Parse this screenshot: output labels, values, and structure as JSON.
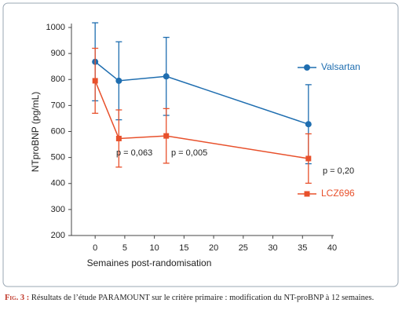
{
  "chart_data": {
    "type": "line",
    "x_label": "Semaines post-randomisation",
    "y_label": "NTproBNP (pg/mL)",
    "x": [
      0,
      4,
      12,
      36
    ],
    "xlim": [
      -4,
      40
    ],
    "xticks": [
      0,
      5,
      10,
      15,
      20,
      25,
      30,
      35,
      40
    ],
    "ylim": [
      200,
      1000
    ],
    "yticks": [
      200,
      300,
      400,
      500,
      600,
      700,
      800,
      900,
      1000
    ],
    "series": [
      {
        "name": "Valsartan",
        "color": "#1f6eb0",
        "marker": "circle",
        "values": [
          868,
          795,
          812,
          628
        ],
        "errors": [
          150,
          150,
          150,
          152
        ]
      },
      {
        "name": "LCZ696",
        "color": "#e8502b",
        "marker": "square",
        "values": [
          795,
          573,
          583,
          496
        ],
        "errors": [
          125,
          110,
          105,
          95
        ]
      }
    ],
    "annotations": [
      "p = 0,063",
      "p = 0,005",
      "p = 0,20"
    ]
  },
  "caption": {
    "label": "Fig. 3 :",
    "text": "Résultats de l’étude PARAMOUNT sur le critère primaire : modification du NT-proBNP à 12 semaines."
  }
}
